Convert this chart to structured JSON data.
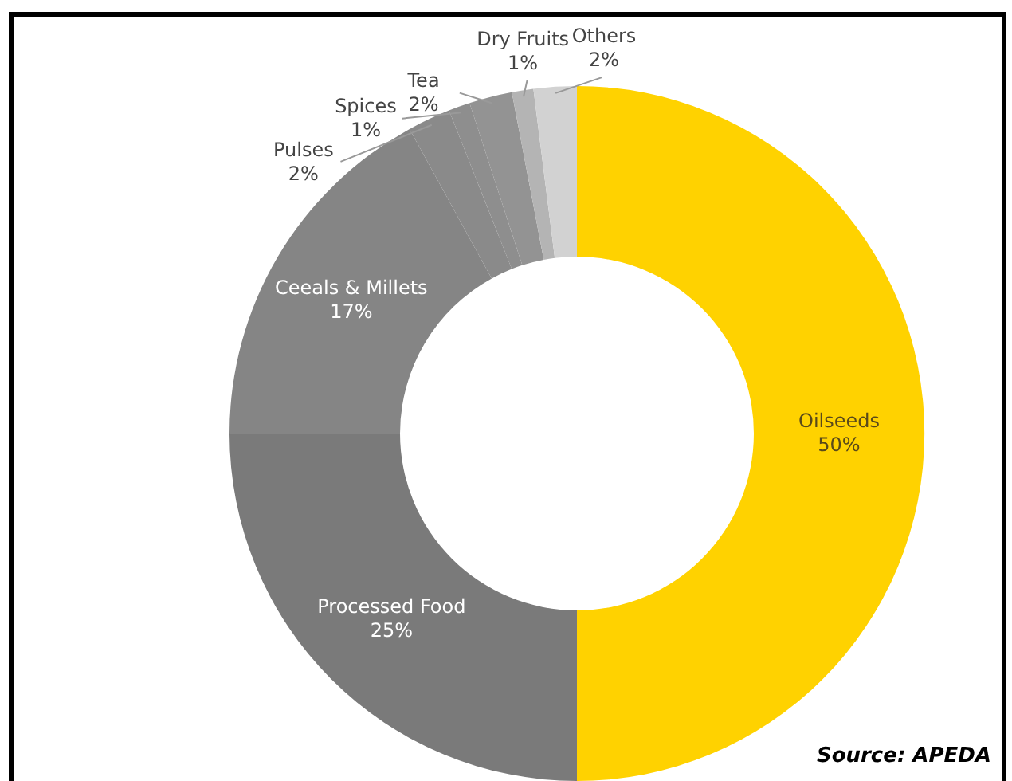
{
  "chart_data": {
    "type": "donut",
    "categories": [
      "Oilseeds",
      "Processed Food",
      "Ceeals & Millets",
      "Pulses",
      "Spices",
      "Tea",
      "Dry Fruits",
      "Others"
    ],
    "values": [
      50,
      25,
      17,
      2,
      1,
      2,
      1,
      2
    ],
    "colors": [
      "#ffd200",
      "#7a7a7a",
      "#858585",
      "#8a8a8a",
      "#8e8e8e",
      "#939393",
      "#b4b4b4",
      "#d2d2d2"
    ],
    "value_labels": [
      "50%",
      "25%",
      "17%",
      "2%",
      "1%",
      "2%",
      "1%",
      "2%"
    ],
    "annotations": [
      "Source: APEDA"
    ]
  }
}
